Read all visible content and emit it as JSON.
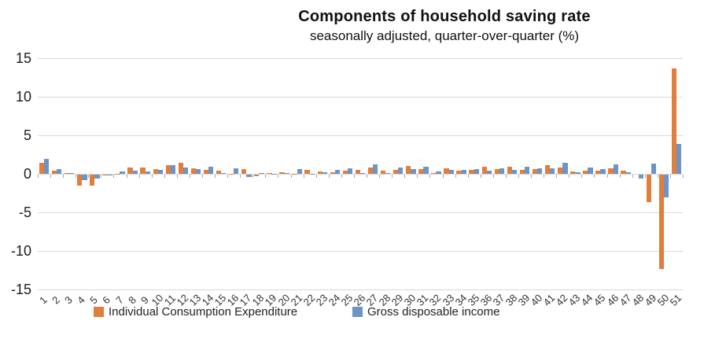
{
  "chart_data": {
    "type": "bar",
    "title": "Components of household saving rate",
    "subtitle": "seasonally adjusted, quarter-over-quarter (%)",
    "ylabel": "",
    "xlabel": "",
    "ylim": [
      -15,
      15
    ],
    "yticks": [
      15,
      10,
      5,
      0,
      -5,
      -10,
      -15
    ],
    "grid": true,
    "legend_position": "bottom",
    "categories": [
      "1",
      "2",
      "3",
      "4",
      "5",
      "6",
      "7",
      "8",
      "9",
      "10",
      "11",
      "12",
      "13",
      "14",
      "15",
      "16",
      "17",
      "18",
      "19",
      "20",
      "21",
      "22",
      "23",
      "24",
      "25",
      "26",
      "27",
      "28",
      "29",
      "30",
      "31",
      "32",
      "33",
      "34",
      "35",
      "36",
      "37",
      "38",
      "39",
      "40",
      "41",
      "42",
      "43",
      "44",
      "45",
      "46",
      "47",
      "48",
      "49",
      "50",
      "51"
    ],
    "series": [
      {
        "name": "Individual Consumption Expenditure",
        "color": "#E07E3C",
        "values": [
          1.4,
          0.45,
          0.15,
          -1.4,
          -1.45,
          -0.15,
          0.05,
          0.8,
          0.85,
          0.6,
          1.1,
          1.45,
          0.7,
          0.5,
          0.4,
          0.05,
          0.6,
          -0.2,
          0.15,
          0.25,
          0.05,
          0.55,
          0.35,
          0.25,
          0.45,
          0.55,
          0.8,
          0.4,
          0.55,
          1.0,
          0.6,
          0.1,
          0.75,
          0.45,
          0.55,
          0.9,
          0.6,
          0.9,
          0.5,
          0.65,
          1.1,
          0.8,
          0.35,
          0.45,
          0.45,
          0.7,
          0.4,
          0.0,
          -3.6,
          -12.2,
          13.7
        ]
      },
      {
        "name": "Gross disposable income",
        "color": "#6D94C4",
        "values": [
          1.9,
          0.65,
          0.1,
          -0.75,
          -0.55,
          -0.1,
          0.3,
          0.45,
          0.35,
          0.5,
          1.15,
          0.8,
          0.65,
          0.9,
          0.1,
          0.7,
          -0.3,
          0.1,
          0.05,
          0.1,
          0.6,
          0.05,
          0.25,
          0.55,
          0.7,
          0.1,
          1.25,
          0.1,
          0.8,
          0.65,
          0.95,
          0.3,
          0.55,
          0.5,
          0.6,
          0.45,
          0.75,
          0.55,
          0.95,
          0.75,
          0.7,
          1.4,
          0.25,
          0.8,
          0.65,
          1.2,
          0.2,
          -0.5,
          1.3,
          -3.0,
          3.9
        ]
      }
    ]
  },
  "colors": {
    "gridline": "#d9d9d9",
    "axis_tick": "#a6a6a6",
    "title_text": "#111111",
    "label_text": "#333333"
  }
}
